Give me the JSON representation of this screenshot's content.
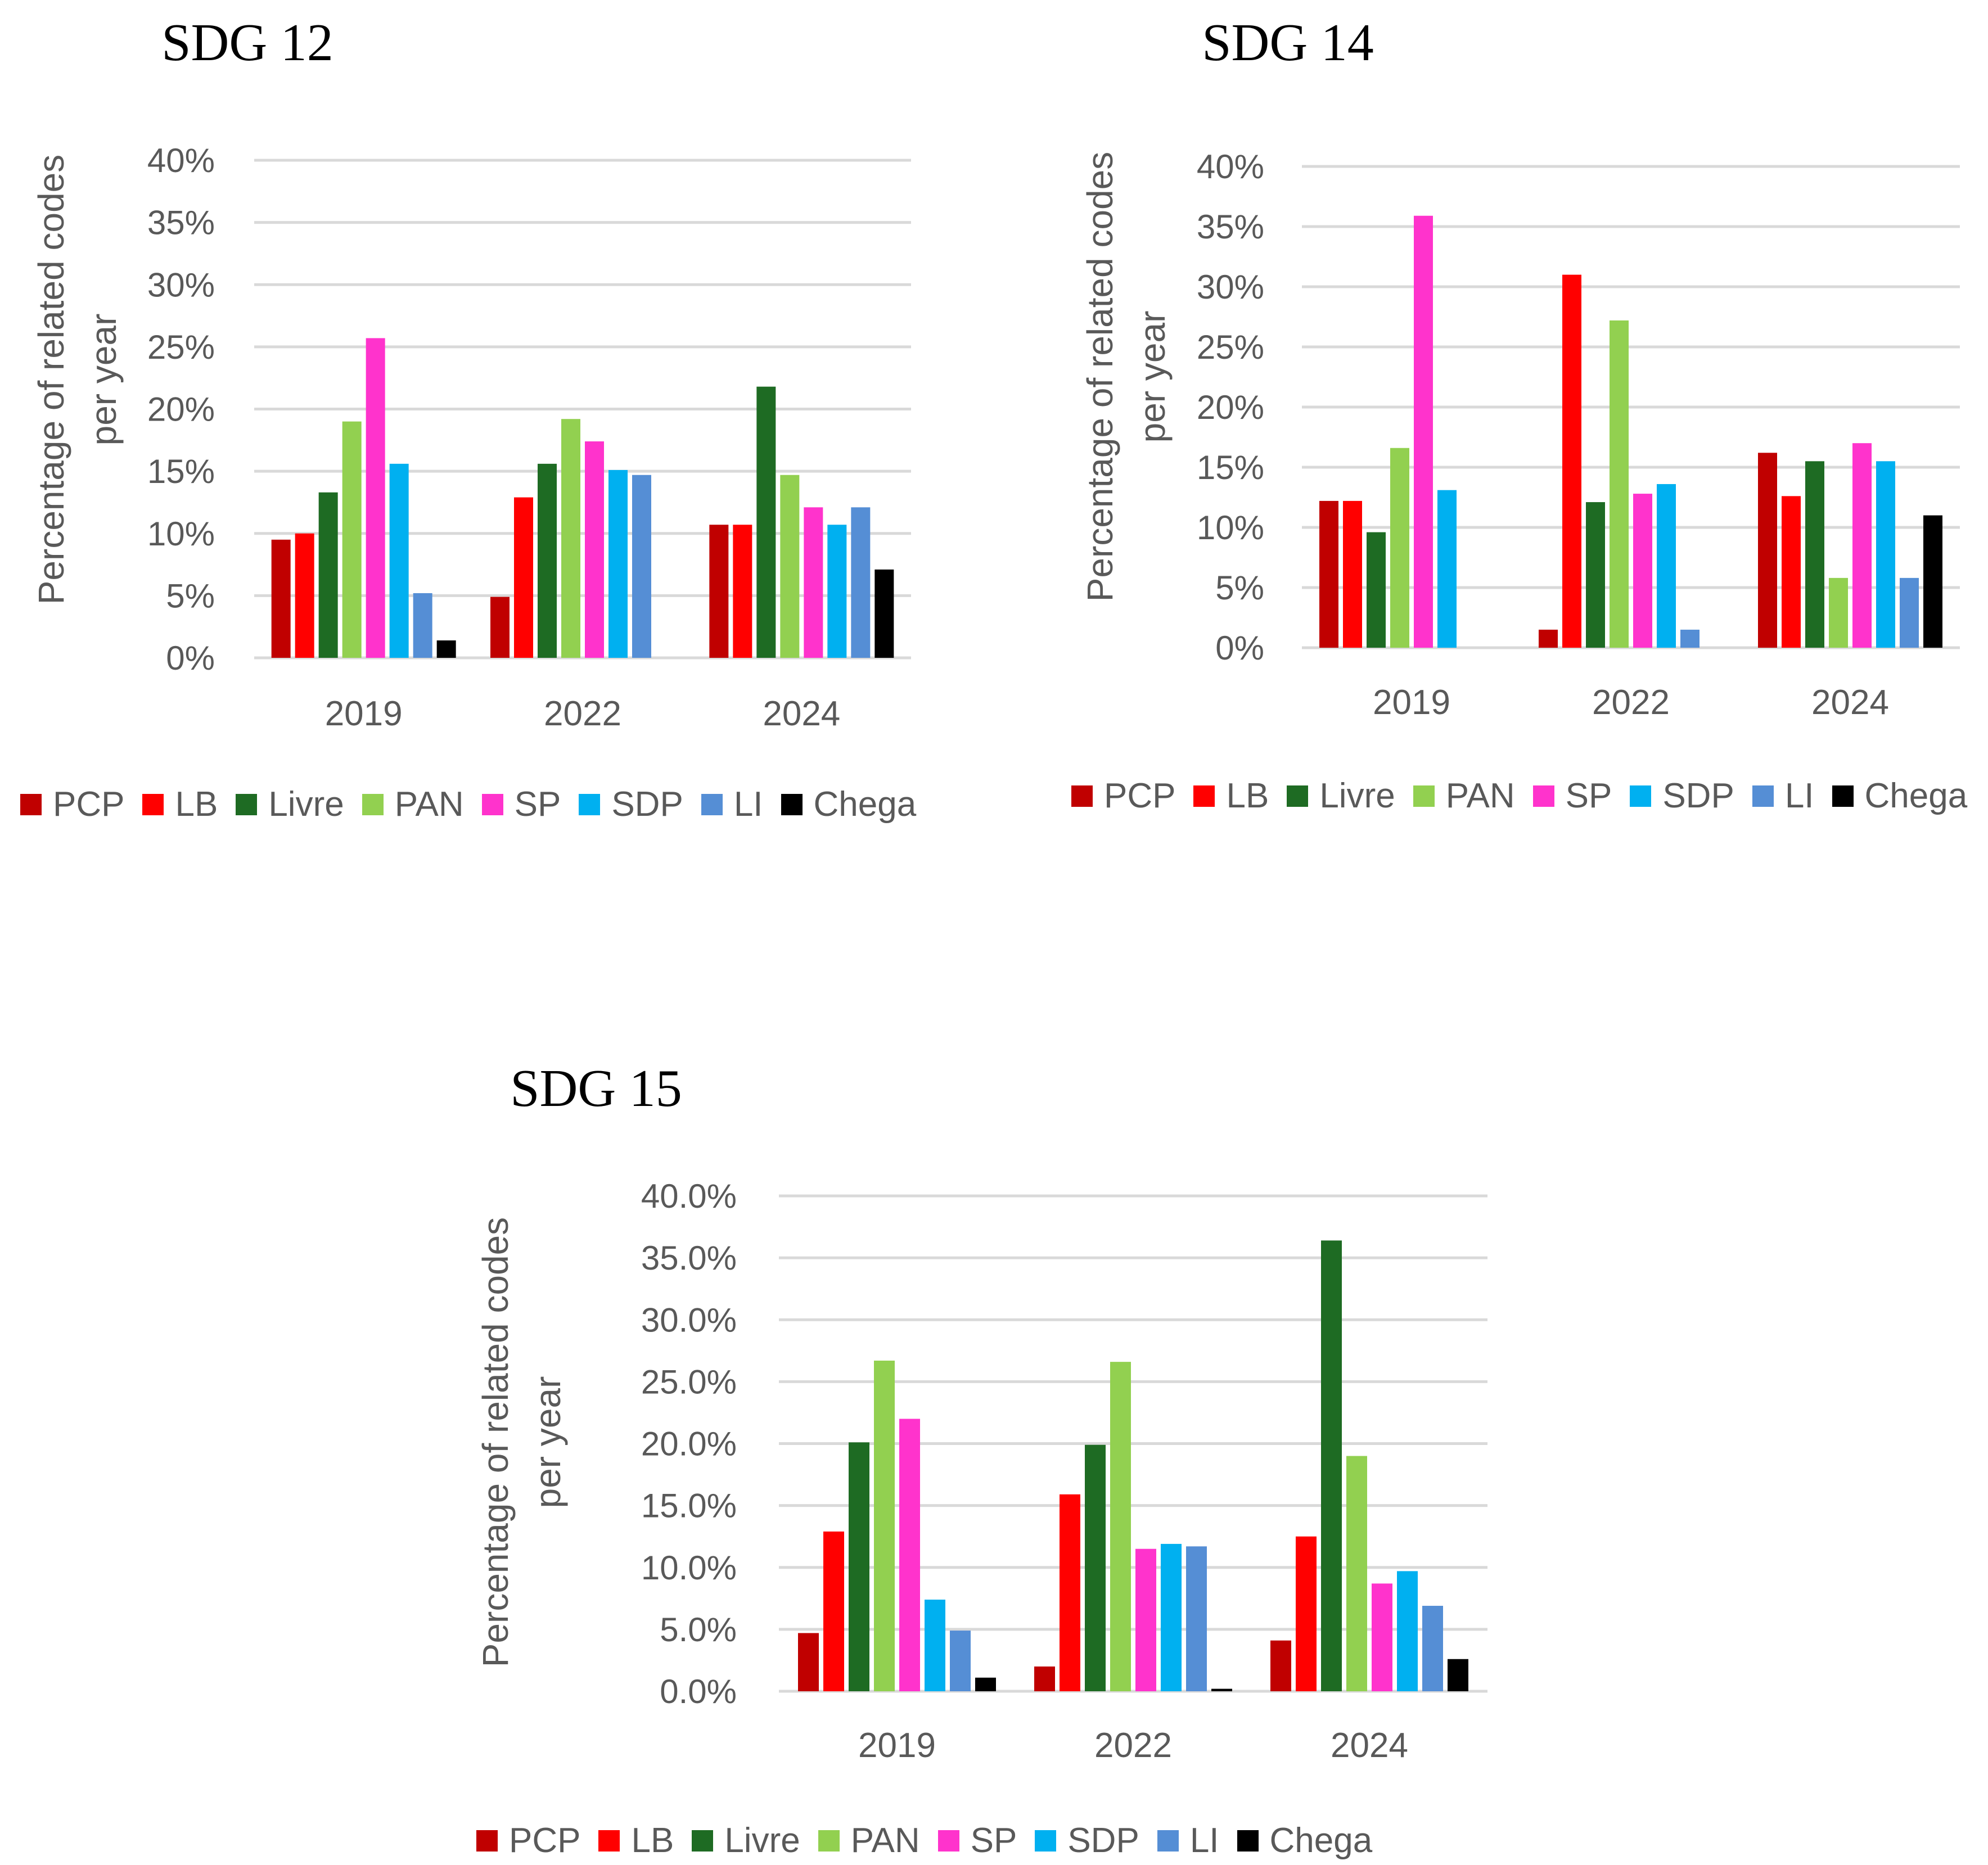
{
  "palette": {
    "PCP": "#C00000",
    "LB": "#FF0000",
    "Livre": "#1E6B23",
    "PAN": "#92D050",
    "SP": "#FF33CC",
    "SDP": "#00B0F0",
    "LI": "#558ED5",
    "Chega": "#000000",
    "grid": "#D9D9D9",
    "tick_text": "#595959"
  },
  "chart_data": [
    {
      "type": "bar",
      "title": "SDG 12",
      "ylabel": "Percentage of related codes per year",
      "ylabel_lines": [
        "Percentage of related codes",
        "per year"
      ],
      "xlabel": "",
      "categories": [
        "2019",
        "2022",
        "2024"
      ],
      "ylim": [
        0,
        40
      ],
      "yticks": [
        "0%",
        "5%",
        "10%",
        "15%",
        "20%",
        "25%",
        "30%",
        "35%",
        "40%"
      ],
      "legend": [
        "PCP",
        "LB",
        "Livre",
        "PAN",
        "SP",
        "SDP",
        "LI",
        "Chega"
      ],
      "legend_position": "bottom",
      "series": [
        {
          "name": "PCP",
          "values": [
            9.5,
            4.9,
            10.7
          ]
        },
        {
          "name": "LB",
          "values": [
            10.0,
            12.9,
            10.7
          ]
        },
        {
          "name": "Livre",
          "values": [
            13.3,
            15.6,
            21.8
          ]
        },
        {
          "name": "PAN",
          "values": [
            19.0,
            19.2,
            14.7
          ]
        },
        {
          "name": "SP",
          "values": [
            25.7,
            17.4,
            12.1
          ]
        },
        {
          "name": "SDP",
          "values": [
            15.6,
            15.1,
            10.7
          ]
        },
        {
          "name": "LI",
          "values": [
            5.2,
            14.7,
            12.1
          ]
        },
        {
          "name": "Chega",
          "values": [
            1.4,
            0,
            7.1
          ]
        }
      ]
    },
    {
      "type": "bar",
      "title": "SDG 14",
      "ylabel": "Percentage of related codes per year",
      "ylabel_lines": [
        "Percentage of related codes",
        "per year"
      ],
      "xlabel": "",
      "categories": [
        "2019",
        "2022",
        "2024"
      ],
      "ylim": [
        0,
        40
      ],
      "yticks": [
        "0%",
        "5%",
        "10%",
        "15%",
        "20%",
        "25%",
        "30%",
        "35%",
        "40%"
      ],
      "legend": [
        "PCP",
        "LB",
        "Livre",
        "PAN",
        "SP",
        "SDP",
        "LI",
        "Chega"
      ],
      "legend_position": "bottom",
      "series": [
        {
          "name": "PCP",
          "values": [
            12.2,
            1.5,
            16.2
          ]
        },
        {
          "name": "LB",
          "values": [
            12.2,
            31.0,
            12.6
          ]
        },
        {
          "name": "Livre",
          "values": [
            9.6,
            12.1,
            15.5
          ]
        },
        {
          "name": "PAN",
          "values": [
            16.6,
            27.2,
            5.8
          ]
        },
        {
          "name": "SP",
          "values": [
            35.9,
            12.8,
            17.0
          ]
        },
        {
          "name": "SDP",
          "values": [
            13.1,
            13.6,
            15.5
          ]
        },
        {
          "name": "LI",
          "values": [
            0,
            1.5,
            5.8
          ]
        },
        {
          "name": "Chega",
          "values": [
            0,
            0,
            11.0
          ]
        }
      ]
    },
    {
      "type": "bar",
      "title": "SDG 15",
      "ylabel": "Percentage of related codes per year",
      "ylabel_lines": [
        "Percentage of related codes",
        "per year"
      ],
      "xlabel": "",
      "categories": [
        "2019",
        "2022",
        "2024"
      ],
      "ylim": [
        0,
        40
      ],
      "yticks": [
        "0.0%",
        "5.0%",
        "10.0%",
        "15.0%",
        "20.0%",
        "25.0%",
        "30.0%",
        "35.0%",
        "40.0%"
      ],
      "legend": [
        "PCP",
        "LB",
        "Livre",
        "PAN",
        "SP",
        "SDP",
        "LI",
        "Chega"
      ],
      "legend_position": "bottom",
      "series": [
        {
          "name": "PCP",
          "values": [
            4.7,
            2.0,
            4.1
          ]
        },
        {
          "name": "LB",
          "values": [
            12.9,
            15.9,
            12.5
          ]
        },
        {
          "name": "Livre",
          "values": [
            20.1,
            19.9,
            36.4
          ]
        },
        {
          "name": "PAN",
          "values": [
            26.7,
            26.6,
            19.0
          ]
        },
        {
          "name": "SP",
          "values": [
            22.0,
            11.5,
            8.7
          ]
        },
        {
          "name": "SDP",
          "values": [
            7.4,
            11.9,
            9.7
          ]
        },
        {
          "name": "LI",
          "values": [
            4.9,
            11.7,
            6.9
          ]
        },
        {
          "name": "Chega",
          "values": [
            1.1,
            0.2,
            2.6
          ]
        }
      ]
    }
  ]
}
